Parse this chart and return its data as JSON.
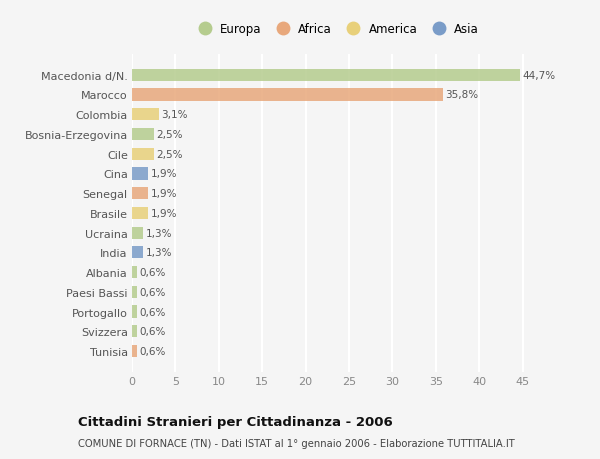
{
  "categories": [
    "Tunisia",
    "Svizzera",
    "Portogallo",
    "Paesi Bassi",
    "Albania",
    "India",
    "Ucraina",
    "Brasile",
    "Senegal",
    "Cina",
    "Cile",
    "Bosnia-Erzegovina",
    "Colombia",
    "Marocco",
    "Macedonia d/N."
  ],
  "values": [
    0.6,
    0.6,
    0.6,
    0.6,
    0.6,
    1.3,
    1.3,
    1.9,
    1.9,
    1.9,
    2.5,
    2.5,
    3.1,
    35.8,
    44.7
  ],
  "colors": [
    "#e8a87c",
    "#b5cc8e",
    "#b5cc8e",
    "#b5cc8e",
    "#b5cc8e",
    "#7a9cc8",
    "#b5cc8e",
    "#e8d07a",
    "#e8a87c",
    "#7a9cc8",
    "#e8d07a",
    "#b5cc8e",
    "#e8d07a",
    "#e8a87c",
    "#b5cc8e"
  ],
  "labels": [
    "0,6%",
    "0,6%",
    "0,6%",
    "0,6%",
    "0,6%",
    "1,3%",
    "1,3%",
    "1,9%",
    "1,9%",
    "1,9%",
    "2,5%",
    "2,5%",
    "3,1%",
    "35,8%",
    "44,7%"
  ],
  "legend_labels": [
    "Europa",
    "Africa",
    "America",
    "Asia"
  ],
  "legend_colors": [
    "#b5cc8e",
    "#e8a87c",
    "#e8d07a",
    "#7a9cc8"
  ],
  "title": "Cittadini Stranieri per Cittadinanza - 2006",
  "subtitle": "COMUNE DI FORNACE (TN) - Dati ISTAT al 1° gennaio 2006 - Elaborazione TUTTITALIA.IT",
  "xlim": [
    0,
    47
  ],
  "xticks": [
    0,
    5,
    10,
    15,
    20,
    25,
    30,
    35,
    40,
    45
  ],
  "background_color": "#f5f5f5",
  "grid_color": "#ffffff",
  "bar_alpha": 0.85
}
